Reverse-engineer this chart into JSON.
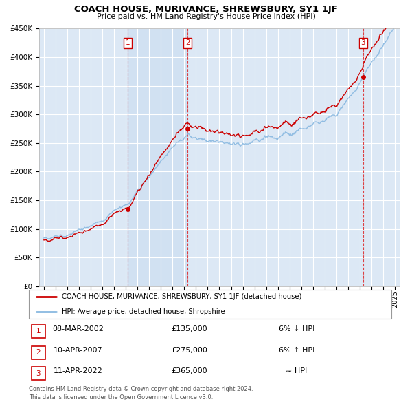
{
  "title": "COACH HOUSE, MURIVANCE, SHREWSBURY, SY1 1JF",
  "subtitle": "Price paid vs. HM Land Registry's House Price Index (HPI)",
  "bg_color": "#ffffff",
  "plot_bg_color": "#dce8f5",
  "grid_color": "#ffffff",
  "sale_color": "#cc0000",
  "hpi_color": "#88b8e0",
  "shade_color": "#c8dcf0",
  "ylim": [
    0,
    450000
  ],
  "ytick_labels": [
    "£0",
    "£50K",
    "£100K",
    "£150K",
    "£200K",
    "£250K",
    "£300K",
    "£350K",
    "£400K",
    "£450K"
  ],
  "ytick_values": [
    0,
    50000,
    100000,
    150000,
    200000,
    250000,
    300000,
    350000,
    400000,
    450000
  ],
  "sale_transactions": [
    {
      "date_num": 2002.19,
      "price": 135000,
      "label": "1",
      "date_str": "08-MAR-2002",
      "pct_vs": "6% ↓ HPI"
    },
    {
      "date_num": 2007.28,
      "price": 275000,
      "label": "2",
      "date_str": "10-APR-2007",
      "pct_vs": "6% ↑ HPI"
    },
    {
      "date_num": 2022.28,
      "price": 365000,
      "label": "3",
      "date_str": "11-APR-2022",
      "pct_vs": "≈ HPI"
    }
  ],
  "legend_sale_label": "COACH HOUSE, MURIVANCE, SHREWSBURY, SY1 1JF (detached house)",
  "legend_hpi_label": "HPI: Average price, detached house, Shropshire",
  "footnote1": "Contains HM Land Registry data © Crown copyright and database right 2024.",
  "footnote2": "This data is licensed under the Open Government Licence v3.0."
}
